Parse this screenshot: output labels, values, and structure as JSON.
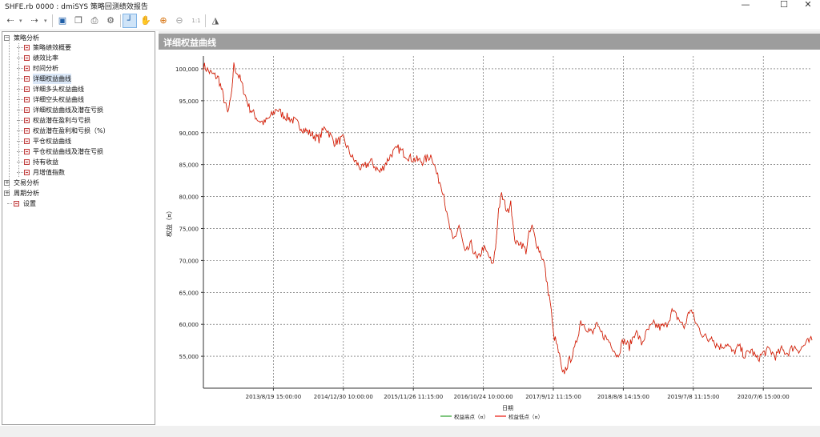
{
  "window": {
    "title": "SHFE.rb 0000 : dmiSYS 策略回测绩效报告",
    "min_glyph": "—",
    "max_glyph": "☐",
    "close_glyph": "✕"
  },
  "toolbar": {
    "icons": [
      "back-arrow-icon",
      "forward-arrow-icon",
      "save-icon",
      "copy-icon",
      "print-icon",
      "settings-icon",
      "crosshair-icon",
      "hand-pan-icon",
      "zoom-in-icon",
      "zoom-out-icon",
      "fit-icon",
      "chart-style-icon"
    ],
    "glyphs": {
      "back": "⇠",
      "forward": "⇢",
      "save": "▣",
      "copy": "❐",
      "print": "⎙",
      "settings": "⚙",
      "crosshair": "┘",
      "hand": "✋",
      "zoom_in": "⊕",
      "zoom_out": "⊖",
      "fit": "1:1",
      "style": "◮",
      "dropdown": "▾"
    }
  },
  "tree": {
    "groups": [
      {
        "label": "策略分析",
        "expanded": true,
        "items": [
          "策略绩效概要",
          "绩效比率",
          "时间分析",
          "详细权益曲线",
          "详细多头权益曲线",
          "详细空头权益曲线",
          "详细权益曲线及潜在亏损",
          "权益潜在盈利与亏损",
          "权益潜在盈利和亏损（%）",
          "平仓权益曲线",
          "平仓权益曲线及潜在亏损",
          "持有收益",
          "月增值指数"
        ],
        "selected_index": 3
      },
      {
        "label": "交易分析",
        "expanded": false,
        "items": []
      },
      {
        "label": "周期分析",
        "expanded": false,
        "items": []
      }
    ],
    "settings_label": "设置",
    "expand_glyph": "+",
    "collapse_glyph": "−"
  },
  "panel": {
    "title": "详细权益曲线"
  },
  "chart_data": {
    "type": "line",
    "xlabel": "日期",
    "ylabel": "权益（¤）",
    "ylim": [
      50000,
      102000
    ],
    "y_ticks": [
      55000,
      60000,
      65000,
      70000,
      75000,
      80000,
      85000,
      90000,
      95000,
      100000
    ],
    "y_tick_labels": [
      "55,000",
      "60,000",
      "65,000",
      "70,000",
      "75,000",
      "80,000",
      "85,000",
      "90,000",
      "95,000",
      "100,000"
    ],
    "x_tick_labels": [
      "2013/8/19 15:00:00",
      "2014/12/30 10:00:00",
      "2015/11/26 11:15:00",
      "2016/10/24 10:00:00",
      "2017/9/12 11:15:00",
      "2018/8/8 14:15:00",
      "2019/7/8 11:15:00",
      "2020/7/6 15:00:00"
    ],
    "x_tick_positions": [
      0.115,
      0.23,
      0.345,
      0.46,
      0.575,
      0.69,
      0.805,
      0.92
    ],
    "grid": true,
    "legend": "bottom",
    "series": [
      {
        "name": "权益高点（¤）",
        "color": "#2ca02c"
      },
      {
        "name": "权益低点（¤）",
        "color": "#e8160c"
      }
    ],
    "equity_curve": {
      "x_fraction": [
        0,
        0.01,
        0.025,
        0.04,
        0.045,
        0.05,
        0.06,
        0.075,
        0.09,
        0.1,
        0.115,
        0.12,
        0.13,
        0.15,
        0.165,
        0.19,
        0.2,
        0.215,
        0.23,
        0.245,
        0.26,
        0.275,
        0.29,
        0.31,
        0.32,
        0.34,
        0.36,
        0.375,
        0.385,
        0.39,
        0.395,
        0.4,
        0.405,
        0.41,
        0.415,
        0.42,
        0.43,
        0.44,
        0.45,
        0.46,
        0.47,
        0.475,
        0.48,
        0.485,
        0.49,
        0.5,
        0.505,
        0.51,
        0.515,
        0.52,
        0.53,
        0.535,
        0.54,
        0.545,
        0.55,
        0.555,
        0.56,
        0.565,
        0.57,
        0.575,
        0.58,
        0.585,
        0.59,
        0.6,
        0.61,
        0.62,
        0.63,
        0.64,
        0.645,
        0.65,
        0.66,
        0.67,
        0.68,
        0.69,
        0.7,
        0.71,
        0.72,
        0.73,
        0.74,
        0.75,
        0.76,
        0.77,
        0.78,
        0.79,
        0.8,
        0.81,
        0.82,
        0.83,
        0.835,
        0.84,
        0.85,
        0.86,
        0.87,
        0.88,
        0.89,
        0.9,
        0.91,
        0.92,
        0.93,
        0.94,
        0.95,
        0.96,
        0.97,
        0.98,
        0.99,
        1.0
      ],
      "values": [
        100500,
        99500,
        98500,
        93000,
        95000,
        100500,
        98500,
        94000,
        92000,
        91500,
        93000,
        93800,
        92800,
        91800,
        90500,
        89000,
        91000,
        88500,
        89000,
        86000,
        84300,
        85500,
        83800,
        86800,
        87500,
        86000,
        85500,
        86500,
        83000,
        82000,
        80500,
        77000,
        75000,
        73000,
        74000,
        75500,
        71000,
        72500,
        70000,
        72000,
        70500,
        69000,
        72000,
        78000,
        80200,
        77500,
        79500,
        74000,
        72500,
        73000,
        71500,
        74000,
        75200,
        73500,
        72000,
        71000,
        69500,
        66000,
        63500,
        58500,
        57000,
        55000,
        52000,
        54000,
        56000,
        60500,
        59500,
        58500,
        60000,
        59000,
        58000,
        57000,
        55000,
        57500,
        56500,
        59000,
        57000,
        59000,
        60000,
        59500,
        59800,
        62000,
        61000,
        59500,
        62500,
        60000,
        58500,
        57500,
        58500,
        57000,
        56500,
        57000,
        55500,
        56500,
        55000,
        56000,
        54500,
        55500,
        56000,
        55000,
        56000,
        55500,
        56500,
        56000,
        57000,
        57500
      ]
    }
  }
}
